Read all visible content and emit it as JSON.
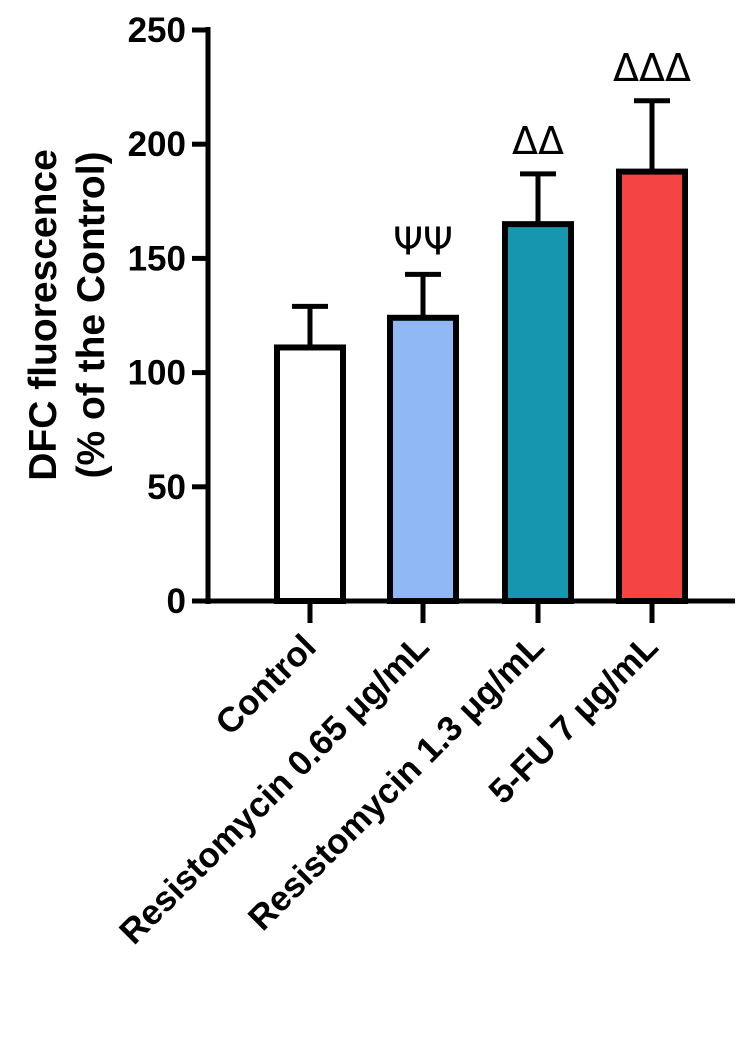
{
  "chart_data": {
    "type": "bar",
    "title": "",
    "ylabel_line1": "DFC fluorescence",
    "ylabel_line2": "(% of the Control)",
    "xlabel": "",
    "ylim": [
      0,
      250
    ],
    "yticks": [
      "0",
      "50",
      "100",
      "150",
      "200",
      "250"
    ],
    "categories": [
      "Control",
      "Resistomycin 0.65 μg/mL",
      "Resistomycin 1.3 μg/mL",
      "5-FU 7 μg/mL"
    ],
    "values": [
      111,
      124,
      165,
      188
    ],
    "errors": [
      18,
      19,
      22,
      31
    ],
    "bar_colors": [
      "#ffffff",
      "#8fb8f5",
      "#1796b0",
      "#f54444"
    ],
    "significance": [
      "",
      "ΨΨ",
      "ΔΔ",
      "ΔΔΔ"
    ],
    "grid": false
  }
}
